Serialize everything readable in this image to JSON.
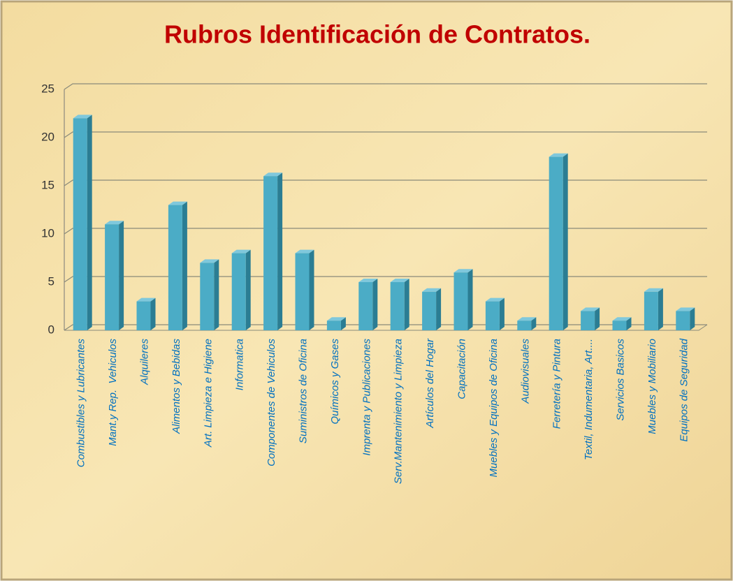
{
  "chart_data": {
    "type": "bar",
    "title": "Rubros Identificación de Contratos.",
    "categories": [
      "Combustibles y Lubricantes",
      "Mant.y Rep.  Vehiculos",
      "Alquileres",
      "Alimentos y Bebidas",
      "Art. Limpieza e Higiene",
      "Informatica",
      "Componentes de Vehiculos",
      "Suministros de Oficina",
      "Químicos y Gases",
      "Imprenta y Publicaciones",
      "Serv.Mantenimiento y Limpieza",
      "Artículos del Hogar",
      "Capacitación",
      "Muebles y Equipos de Oficina",
      "Audiovisuales",
      "Ferretería y Pintura",
      "Textil, Indumentaria, Art....",
      "Servicios Basicos",
      "Muebles y Mobiliario",
      "Equipos de Seguridad"
    ],
    "values": [
      22,
      11,
      3,
      13,
      7,
      8,
      16,
      8,
      1,
      5,
      5,
      4,
      6,
      3,
      1,
      18,
      2,
      1,
      4,
      2
    ],
    "color": "#4bacc6",
    "ylim": [
      0,
      25
    ],
    "yticks": [
      0,
      5,
      10,
      15,
      20,
      25
    ],
    "grid": true
  }
}
